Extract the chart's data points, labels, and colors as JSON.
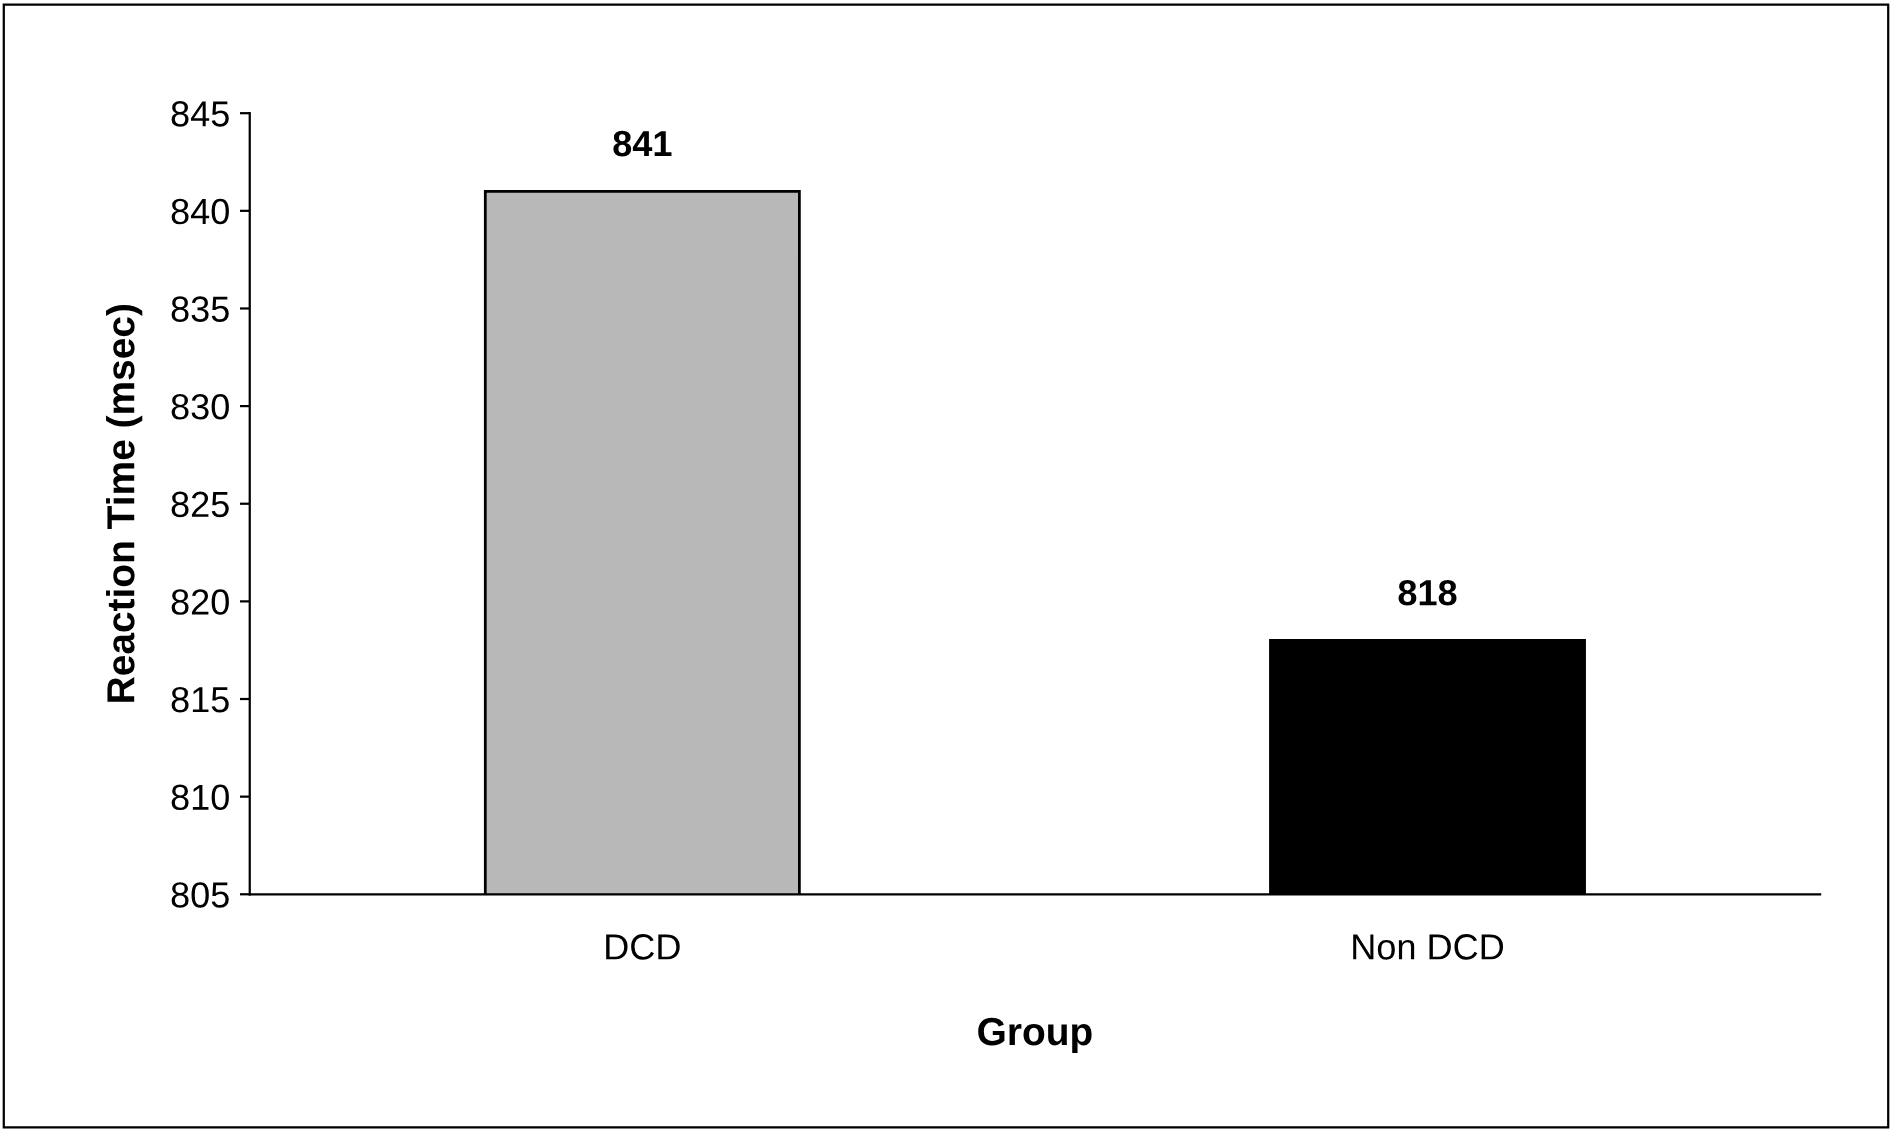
{
  "chart_data": {
    "type": "bar",
    "xlabel": "Group",
    "ylabel": "Reaction Time (msec)",
    "categories": [
      "DCD",
      "Non DCD"
    ],
    "values": [
      841,
      818
    ],
    "colors": [
      "#b8b8b8",
      "#000000"
    ],
    "ylim": [
      805,
      845
    ],
    "yticks": [
      805,
      810,
      815,
      820,
      825,
      830,
      835,
      840,
      845
    ],
    "data_labels": true,
    "grid": false,
    "legend": false
  }
}
